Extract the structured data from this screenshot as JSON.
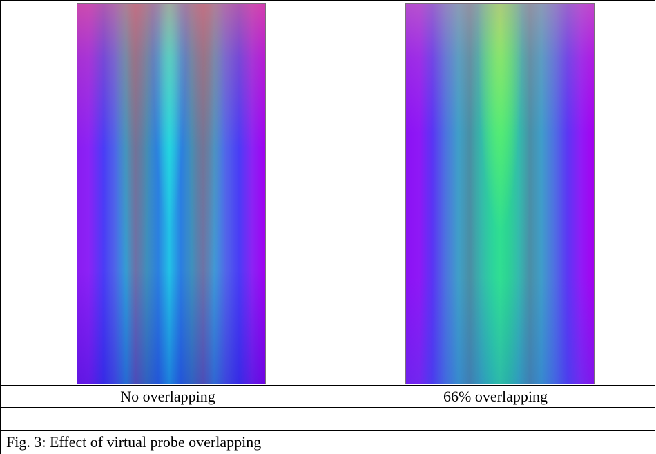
{
  "figure": {
    "panels": [
      {
        "label": "No overlapping"
      },
      {
        "label": "66% overlapping"
      }
    ],
    "caption": "Fig. 3: Effect of virtual probe overlapping"
  }
}
